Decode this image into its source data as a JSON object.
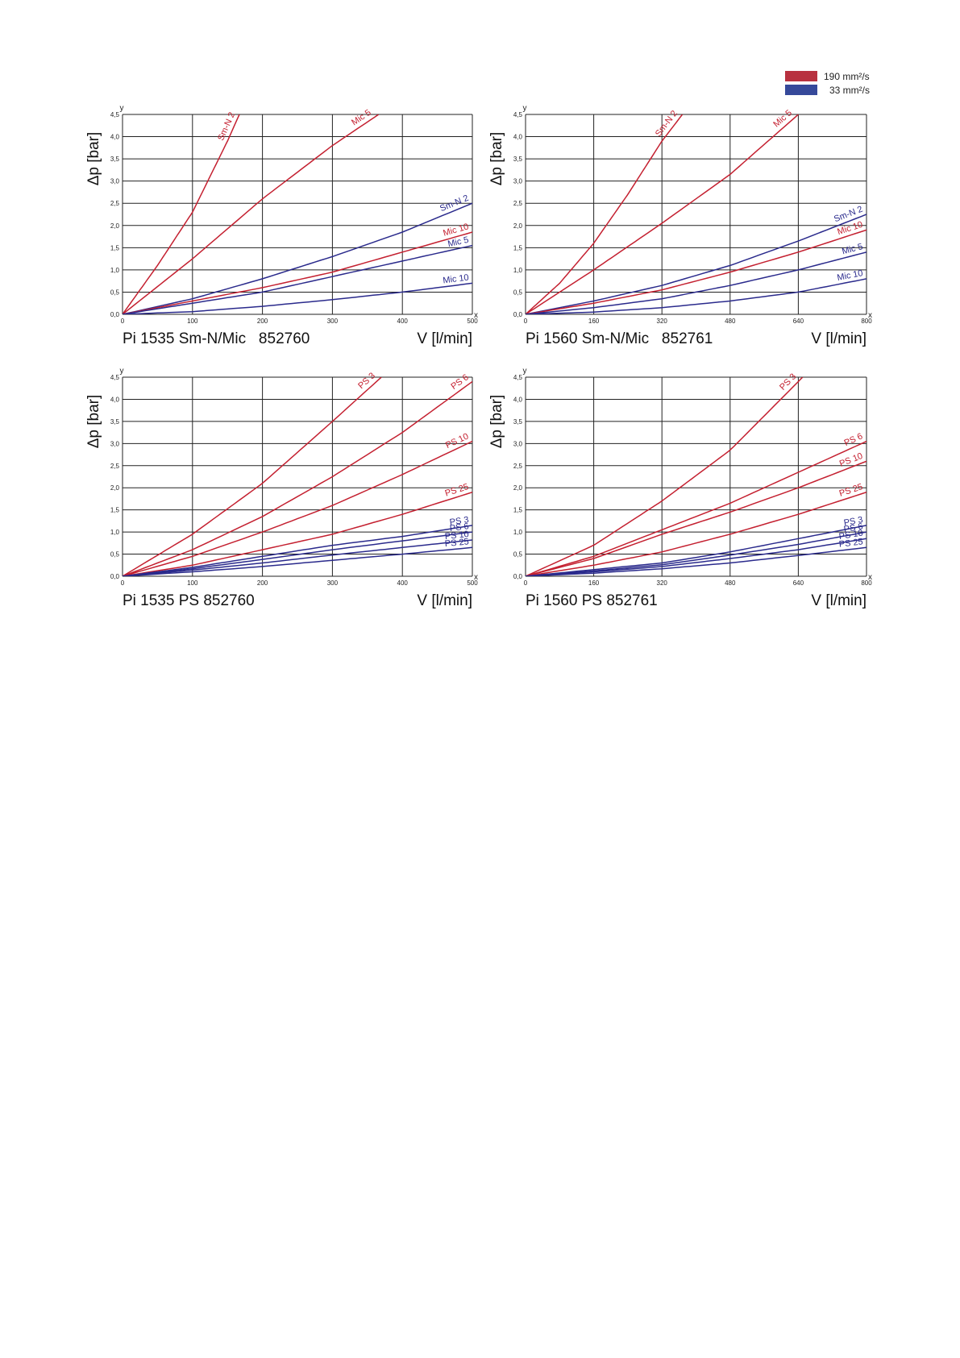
{
  "legend": [
    {
      "label": "190 mm²/s",
      "color": "#b8313f"
    },
    {
      "label": "33 mm²/s",
      "color": "#36499a"
    }
  ],
  "colors": {
    "high_viscosity": "#c42030",
    "low_viscosity": "#2a2a8c"
  },
  "chart_data": [
    {
      "type": "line",
      "caption": "Pi 1535 Sm-N/Mic   852760",
      "xlabel": "V [l/min]",
      "ylabel": "Δp [bar]",
      "x_axis_letter": "x",
      "y_axis_letter": "y",
      "xlim": [
        0,
        500
      ],
      "ylim": [
        0,
        4.5
      ],
      "xticks": [
        "0",
        "100",
        "200",
        "300",
        "400",
        "500"
      ],
      "yticks": [
        "0,0",
        "0,5",
        "1,0",
        "1,5",
        "2,0",
        "2,5",
        "3,0",
        "3,5",
        "4,0",
        "4,5"
      ],
      "grid": true,
      "series": [
        {
          "name": "Sm-N 2",
          "viscosity": "190 mm²/s",
          "x": [
            0,
            50,
            100,
            150,
            167
          ],
          "y": [
            0,
            1.1,
            2.3,
            3.9,
            4.5
          ]
        },
        {
          "name": "Mic 5",
          "viscosity": "190 mm²/s",
          "x": [
            0,
            100,
            200,
            300,
            366
          ],
          "y": [
            0,
            1.25,
            2.6,
            3.8,
            4.5
          ]
        },
        {
          "name": "Sm-N 2",
          "viscosity": "33 mm²/s",
          "x": [
            0,
            100,
            200,
            300,
            400,
            500
          ],
          "y": [
            0,
            0.35,
            0.8,
            1.3,
            1.85,
            2.5
          ]
        },
        {
          "name": "Mic 10",
          "viscosity": "190 mm²/s",
          "x": [
            0,
            100,
            200,
            300,
            400,
            500
          ],
          "y": [
            0,
            0.3,
            0.6,
            0.95,
            1.4,
            1.85
          ]
        },
        {
          "name": "Mic 5",
          "viscosity": "33 mm²/s",
          "x": [
            0,
            100,
            200,
            300,
            400,
            500
          ],
          "y": [
            0,
            0.25,
            0.5,
            0.85,
            1.2,
            1.55
          ]
        },
        {
          "name": "Mic 10",
          "viscosity": "33 mm²/s",
          "x": [
            0,
            100,
            200,
            300,
            400,
            500
          ],
          "y": [
            0,
            0.06,
            0.18,
            0.33,
            0.5,
            0.7
          ]
        }
      ]
    },
    {
      "type": "line",
      "caption": "Pi 1560 Sm-N/Mic   852761",
      "xlabel": "V [l/min]",
      "ylabel": "Δp [bar]",
      "x_axis_letter": "x",
      "y_axis_letter": "y",
      "xlim": [
        0,
        800
      ],
      "ylim": [
        0,
        4.5
      ],
      "xticks": [
        "0",
        "160",
        "320",
        "480",
        "640",
        "800"
      ],
      "yticks": [
        "0,0",
        "0,5",
        "1,0",
        "1,5",
        "2,0",
        "2,5",
        "3,0",
        "3,5",
        "4,0",
        "4,5"
      ],
      "grid": true,
      "series": [
        {
          "name": "Sm-N 2",
          "viscosity": "190 mm²/s",
          "x": [
            0,
            80,
            160,
            240,
            320,
            368
          ],
          "y": [
            0,
            0.7,
            1.6,
            2.7,
            3.9,
            4.5
          ]
        },
        {
          "name": "Mic 5",
          "viscosity": "190 mm²/s",
          "x": [
            0,
            160,
            320,
            480,
            640,
            630
          ],
          "y": [
            0,
            1.0,
            2.05,
            3.15,
            4.5,
            4.45
          ]
        },
        {
          "name": "Sm-N 2",
          "viscosity": "33 mm²/s",
          "x": [
            0,
            160,
            320,
            480,
            640,
            800
          ],
          "y": [
            0,
            0.3,
            0.65,
            1.1,
            1.65,
            2.25
          ]
        },
        {
          "name": "Mic 10",
          "viscosity": "190 mm²/s",
          "x": [
            0,
            160,
            320,
            480,
            640,
            800
          ],
          "y": [
            0,
            0.25,
            0.55,
            0.95,
            1.4,
            1.9
          ]
        },
        {
          "name": "Mic 5",
          "viscosity": "33 mm²/s",
          "x": [
            0,
            160,
            320,
            480,
            640,
            800
          ],
          "y": [
            0,
            0.15,
            0.35,
            0.65,
            1.0,
            1.4
          ]
        },
        {
          "name": "Mic 10",
          "viscosity": "33 mm²/s",
          "x": [
            0,
            160,
            320,
            480,
            640,
            800
          ],
          "y": [
            0,
            0.05,
            0.15,
            0.3,
            0.5,
            0.8
          ]
        }
      ]
    },
    {
      "type": "line",
      "caption": "Pi 1535 PS 852760",
      "xlabel": "V [l/min]",
      "ylabel": "Δp [bar]",
      "x_axis_letter": "x",
      "y_axis_letter": "y",
      "xlim": [
        0,
        500
      ],
      "ylim": [
        0,
        4.5
      ],
      "xticks": [
        "0",
        "100",
        "200",
        "300",
        "400",
        "500"
      ],
      "yticks": [
        "0,0",
        "0,5",
        "1,0",
        "1,5",
        "2,0",
        "2,5",
        "3,0",
        "3,5",
        "4,0",
        "4,5"
      ],
      "grid": true,
      "series": [
        {
          "name": "PS 3",
          "viscosity": "190 mm²/s",
          "x": [
            0,
            100,
            200,
            300,
            370
          ],
          "y": [
            0,
            0.95,
            2.1,
            3.5,
            4.5
          ]
        },
        {
          "name": "PS 6",
          "viscosity": "190 mm²/s",
          "x": [
            0,
            100,
            200,
            300,
            400,
            500
          ],
          "y": [
            0,
            0.6,
            1.35,
            2.25,
            3.25,
            4.4
          ]
        },
        {
          "name": "PS 10",
          "viscosity": "190 mm²/s",
          "x": [
            0,
            100,
            200,
            300,
            400,
            500
          ],
          "y": [
            0,
            0.45,
            1.0,
            1.6,
            2.3,
            3.05
          ]
        },
        {
          "name": "PS 25",
          "viscosity": "190 mm²/s",
          "x": [
            0,
            100,
            200,
            300,
            400,
            500
          ],
          "y": [
            0,
            0.25,
            0.6,
            0.95,
            1.4,
            1.9
          ]
        },
        {
          "name": "PS 3",
          "viscosity": "33 mm²/s",
          "x": [
            0,
            100,
            200,
            300,
            400,
            500
          ],
          "y": [
            0,
            0.2,
            0.45,
            0.7,
            0.9,
            1.15
          ]
        },
        {
          "name": "PS 6",
          "viscosity": "33 mm²/s",
          "x": [
            0,
            100,
            200,
            300,
            400,
            500
          ],
          "y": [
            0,
            0.17,
            0.38,
            0.6,
            0.8,
            1.0
          ]
        },
        {
          "name": "PS 10",
          "viscosity": "33 mm²/s",
          "x": [
            0,
            100,
            200,
            300,
            400,
            500
          ],
          "y": [
            0,
            0.14,
            0.3,
            0.48,
            0.65,
            0.82
          ]
        },
        {
          "name": "PS 25",
          "viscosity": "33 mm²/s",
          "x": [
            0,
            100,
            200,
            300,
            400,
            500
          ],
          "y": [
            0,
            0.1,
            0.22,
            0.36,
            0.5,
            0.65
          ]
        }
      ]
    },
    {
      "type": "line",
      "caption": "Pi 1560 PS 852761",
      "xlabel": "V [l/min]",
      "ylabel": "Δp [bar]",
      "x_axis_letter": "x",
      "y_axis_letter": "y",
      "xlim": [
        0,
        800
      ],
      "ylim": [
        0,
        4.5
      ],
      "xticks": [
        "0",
        "160",
        "320",
        "480",
        "640",
        "800"
      ],
      "yticks": [
        "0,0",
        "0,5",
        "1,0",
        "1,5",
        "2,0",
        "2,5",
        "3,0",
        "3,5",
        "4,0",
        "4,5"
      ],
      "grid": true,
      "series": [
        {
          "name": "PS 3",
          "viscosity": "190 mm²/s",
          "x": [
            0,
            160,
            320,
            480,
            640,
            650
          ],
          "y": [
            0,
            0.7,
            1.7,
            2.85,
            4.4,
            4.5
          ]
        },
        {
          "name": "PS 6",
          "viscosity": "190 mm²/s",
          "x": [
            0,
            160,
            320,
            480,
            640,
            800
          ],
          "y": [
            0,
            0.45,
            1.05,
            1.65,
            2.35,
            3.05
          ]
        },
        {
          "name": "PS 10",
          "viscosity": "190 mm²/s",
          "x": [
            0,
            160,
            320,
            480,
            640,
            800
          ],
          "y": [
            0,
            0.4,
            0.95,
            1.45,
            2.0,
            2.6
          ]
        },
        {
          "name": "PS 25",
          "viscosity": "190 mm²/s",
          "x": [
            0,
            160,
            320,
            480,
            640,
            800
          ],
          "y": [
            0,
            0.25,
            0.55,
            0.95,
            1.4,
            1.9
          ]
        },
        {
          "name": "PS 3",
          "viscosity": "33 mm²/s",
          "x": [
            0,
            160,
            320,
            480,
            640,
            800
          ],
          "y": [
            0,
            0.15,
            0.3,
            0.55,
            0.85,
            1.15
          ]
        },
        {
          "name": "PS 6",
          "viscosity": "33 mm²/s",
          "x": [
            0,
            160,
            320,
            480,
            640,
            800
          ],
          "y": [
            0,
            0.12,
            0.26,
            0.48,
            0.72,
            1.0
          ]
        },
        {
          "name": "PS 10",
          "viscosity": "33 mm²/s",
          "x": [
            0,
            160,
            320,
            480,
            640,
            800
          ],
          "y": [
            0,
            0.1,
            0.22,
            0.4,
            0.6,
            0.85
          ]
        },
        {
          "name": "PS 25",
          "viscosity": "33 mm²/s",
          "x": [
            0,
            160,
            320,
            480,
            640,
            800
          ],
          "y": [
            0,
            0.07,
            0.17,
            0.3,
            0.47,
            0.65
          ]
        }
      ]
    }
  ]
}
